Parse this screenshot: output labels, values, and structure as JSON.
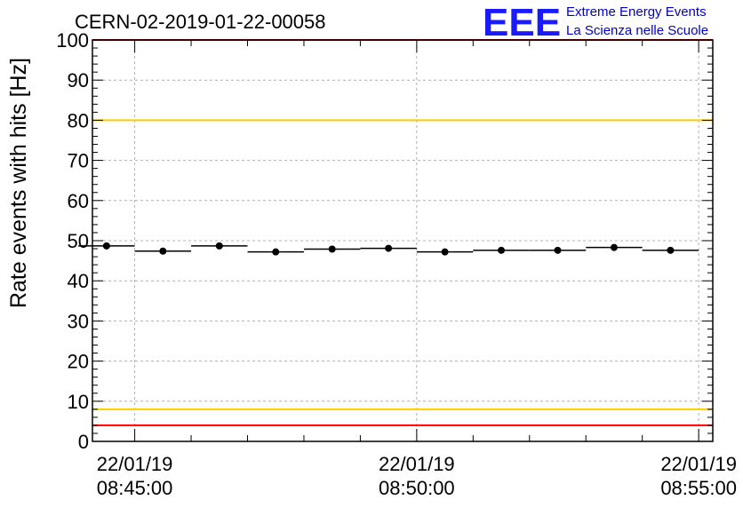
{
  "chart_data": {
    "type": "scatter",
    "title": "CERN-02-2019-01-22-00058",
    "ylabel": "Rate events with hits [Hz]",
    "xlabel": "",
    "ylim": [
      0,
      100
    ],
    "xlim": [
      "2019-01-22 08:44:15",
      "2019-01-22 08:55:15"
    ],
    "yticks": [
      0,
      10,
      20,
      30,
      40,
      50,
      60,
      70,
      80,
      90,
      100
    ],
    "xticks": [
      {
        "date": "22/01/19",
        "time": "08:45:00",
        "value": "2019-01-22 08:45:00"
      },
      {
        "date": "22/01/19",
        "time": "08:50:00",
        "value": "2019-01-22 08:50:00"
      },
      {
        "date": "22/01/19",
        "time": "08:55:00",
        "value": "2019-01-22 08:55:00"
      }
    ],
    "grid": true,
    "bin_width_seconds": 60,
    "series": [
      {
        "x": [
          "08:44:30",
          "08:45:30",
          "08:46:30",
          "08:47:30",
          "08:48:30",
          "08:49:30",
          "08:50:30",
          "08:51:30",
          "08:52:30",
          "08:53:30",
          "08:54:30"
        ],
        "y": [
          48.7,
          47.4,
          48.7,
          47.2,
          47.9,
          48.1,
          47.2,
          47.6,
          47.6,
          48.3,
          47.6
        ],
        "color": "#000000"
      }
    ],
    "reference_lines": [
      {
        "y": 100,
        "color": "#ff0000"
      },
      {
        "y": 80,
        "color": "#ffcc00"
      },
      {
        "y": 8,
        "color": "#ffcc00"
      },
      {
        "y": 4,
        "color": "#ff0000"
      }
    ]
  },
  "logo": {
    "mark": "EEE",
    "line1": "Extreme Energy Events",
    "line2": "La Scienza nelle Scuole",
    "color": "#1a1aff"
  }
}
